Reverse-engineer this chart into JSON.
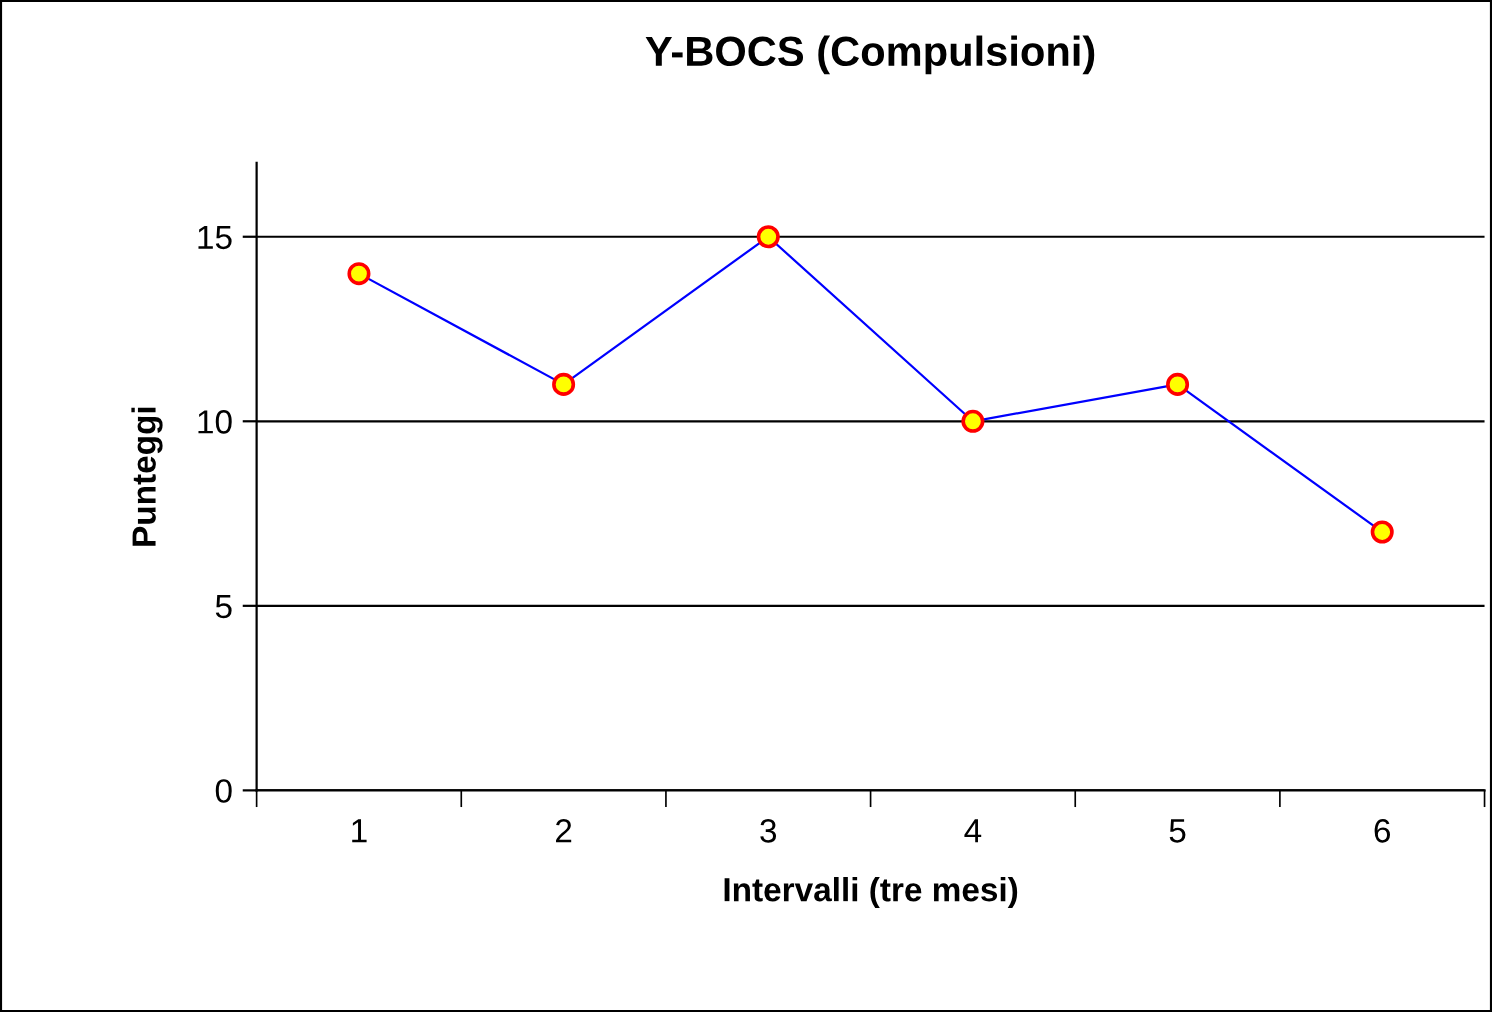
{
  "chart_data": {
    "type": "line",
    "title": "Y-BOCS (Compulsioni)",
    "xlabel": "Intervalli (tre mesi)",
    "ylabel": "Punteggi",
    "categories": [
      "1",
      "2",
      "3",
      "4",
      "5",
      "6"
    ],
    "series": [
      {
        "color": "#0000ff",
        "values": [
          14,
          11,
          15,
          10,
          11,
          7
        ]
      }
    ],
    "ylim": [
      0,
      17
    ],
    "yticks": [
      0,
      5,
      10,
      15
    ],
    "grid": "y",
    "marker": "circle",
    "line_style": "solid",
    "legend": false
  }
}
